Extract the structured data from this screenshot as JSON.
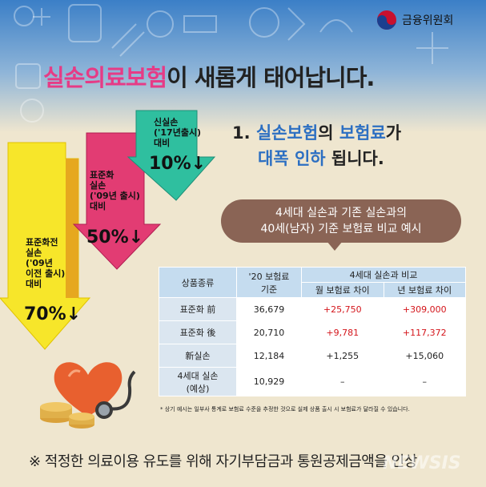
{
  "brand": "금융위원회",
  "title": {
    "highlight": "실손의료보험",
    "rest": "이 새롭게 태어납니다."
  },
  "subtitle": {
    "line1_num": "1.",
    "line1_blue1": "실손보험",
    "line1_text1": "의",
    "line1_blue2": "보험료",
    "line1_text2": "가",
    "line2_blue": "대폭 인하",
    "line2_text": "됩니다."
  },
  "arrows": {
    "a1": {
      "lines": [
        "신실손",
        "('17년출시)",
        "대비"
      ],
      "pct": "10%",
      "color": "#2fbf9f"
    },
    "a2": {
      "lines": [
        "표준화",
        "실손",
        "('09년 출시)",
        "대비"
      ],
      "pct": "50%",
      "color": "#e23c73"
    },
    "a3": {
      "lines": [
        "표준화전",
        "실손",
        "('09년",
        "이전 출시)",
        "대비"
      ],
      "pct": "70%",
      "color": "#f7e62a"
    }
  },
  "bubble": {
    "line1": "4세대 실손과 기존 실손과의",
    "line2": "40세(남자) 기준 보험료 비교 예시"
  },
  "table": {
    "h_type": "상품종류",
    "h_prem1": "'20 보험료",
    "h_prem2": "기준",
    "h_group": "4세대 실손과 비교",
    "h_month": "월 보험료 차이",
    "h_year": "년 보험료 차이",
    "rows": [
      {
        "name": "표준화 前",
        "prem": "36,679",
        "month": "+25,750",
        "year": "+309,000"
      },
      {
        "name": "표준화 後",
        "prem": "20,710",
        "month": "+9,781",
        "year": "+117,372"
      },
      {
        "name": "新실손",
        "prem": "12,184",
        "month": "+1,255",
        "year": "+15,060"
      },
      {
        "name1": "4세대 실손",
        "name2": "(예상)",
        "prem": "10,929",
        "month": "–",
        "year": "–"
      }
    ]
  },
  "footnote": "* 상기 예시는 일부사 통계로 보험료 수준을 추정한 것으로 실제 상품 출시 시 보험료가 달라질 수 있습니다.",
  "bottom_note": "※ 적정한 의료이용 유도를 위해 자기부담금과 통원공제금액을 인상",
  "watermark": "NEWSIS",
  "colors": {
    "background": "#efe6cf",
    "header_band": "#3b7fc7",
    "accent_pink": "#e63b86",
    "accent_blue": "#2c6fc2",
    "increase_red": "#d4151b"
  }
}
